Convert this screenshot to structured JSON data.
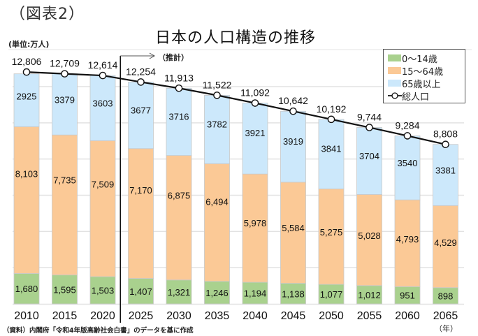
{
  "figure_label": "（図表2）",
  "unit_label": "(単位:万人)",
  "projection_label": "（推計）",
  "source_note": "（資料）内閣府「令和4年版高齢社会白書」のデータを基に作成",
  "year_unit": "（年）",
  "colors": {
    "age_0_14": "#a9d18e",
    "age_15_64": "#fbc996",
    "age_65_plus": "#cce8fb",
    "total_line": "#111111",
    "gridline": "#e2e2e2",
    "bar_border": "#c9c9c9"
  },
  "legend": {
    "items": [
      {
        "label": "0～14歳",
        "key": "age_0_14"
      },
      {
        "label": "15～64歳",
        "key": "age_15_64"
      },
      {
        "label": "65歳以上",
        "key": "age_65_plus"
      },
      {
        "label": "総人口",
        "key": "total_line"
      }
    ]
  },
  "chart_data": {
    "type": "bar",
    "stacked": true,
    "title": "日本の人口構造の推移",
    "xlabel": "（年）",
    "ylabel": "(単位:万人)",
    "ylim": [
      0,
      14000
    ],
    "grid": true,
    "gridline_step": 2000,
    "legend_position": "top-right",
    "projection_start": "2025",
    "categories": [
      "2010",
      "2015",
      "2020",
      "2025",
      "2030",
      "2035",
      "2040",
      "2045",
      "2050",
      "2055",
      "2060",
      "2065"
    ],
    "series": [
      {
        "name": "0～14歳",
        "key": "age_0_14",
        "type": "bar",
        "values": [
          1680,
          1595,
          1503,
          1407,
          1321,
          1246,
          1194,
          1138,
          1077,
          1012,
          951,
          898
        ],
        "labels": [
          "1,680",
          "1,595",
          "1,503",
          "1,407",
          "1,321",
          "1,246",
          "1,194",
          "1,138",
          "1,077",
          "1,012",
          "951",
          "898"
        ]
      },
      {
        "name": "15～64歳",
        "key": "age_15_64",
        "type": "bar",
        "values": [
          8103,
          7735,
          7509,
          7170,
          6875,
          6494,
          5978,
          5584,
          5275,
          5028,
          4793,
          4529
        ],
        "labels": [
          "8,103",
          "7,735",
          "7,509",
          "7,170",
          "6,875",
          "6,494",
          "5,978",
          "5,584",
          "5,275",
          "5,028",
          "4,793",
          "4,529"
        ]
      },
      {
        "name": "65歳以上",
        "key": "age_65_plus",
        "type": "bar",
        "values": [
          2925,
          3379,
          3603,
          3677,
          3716,
          3782,
          3921,
          3919,
          3841,
          3704,
          3540,
          3381
        ],
        "labels": [
          "2925",
          "3379",
          "3603",
          "3677",
          "3716",
          "3782",
          "3921",
          "3919",
          "3841",
          "3704",
          "3540",
          "3381"
        ]
      },
      {
        "name": "総人口",
        "key": "total_line",
        "type": "line",
        "values": [
          12806,
          12709,
          12614,
          12254,
          11913,
          11522,
          11092,
          10642,
          10192,
          9744,
          9284,
          8808
        ],
        "labels": [
          "12,806",
          "12,709",
          "12,614",
          "12,254",
          "11,913",
          "11,522",
          "11,092",
          "10,642",
          "10,192",
          "9,744",
          "9,284",
          "8,808"
        ]
      }
    ]
  }
}
